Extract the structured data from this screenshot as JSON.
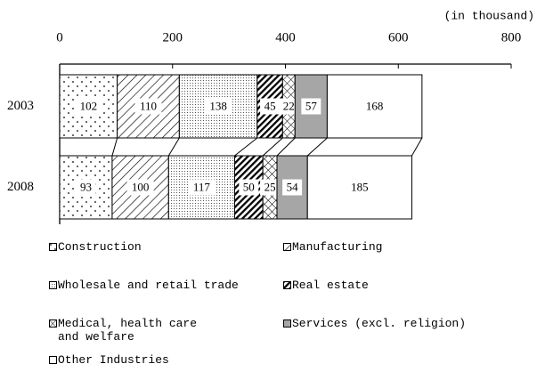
{
  "chart_data": {
    "type": "stacked-bar-horizontal",
    "axis_label": "(in thousand)",
    "categories": [
      "2003",
      "2008"
    ],
    "series": [
      {
        "name": "Construction",
        "color": "#ffffff",
        "pattern": "dots",
        "values": [
          102,
          93
        ]
      },
      {
        "name": "Manufacturing",
        "color": "#ffffff",
        "pattern": "hatch",
        "values": [
          110,
          100
        ]
      },
      {
        "name": "Wholesale and retail trade",
        "color": "#ffffff",
        "pattern": "fine-dots",
        "values": [
          138,
          117
        ]
      },
      {
        "name": "Real estate",
        "color": "#ffffff",
        "pattern": "dense-hatch",
        "values": [
          45,
          50
        ]
      },
      {
        "name": "Medical, health care and welfare",
        "color": "#ffffff",
        "pattern": "cross",
        "values": [
          22,
          25
        ]
      },
      {
        "name": "Services (excl. religion)",
        "color": "#a6a6a6",
        "pattern": "solid",
        "values": [
          57,
          54
        ]
      },
      {
        "name": "Other Industries",
        "color": "#ffffff",
        "pattern": "solid",
        "values": [
          168,
          185
        ]
      }
    ],
    "xlim": [
      0,
      800
    ],
    "xticks": [
      0,
      200,
      400,
      600,
      800
    ]
  }
}
